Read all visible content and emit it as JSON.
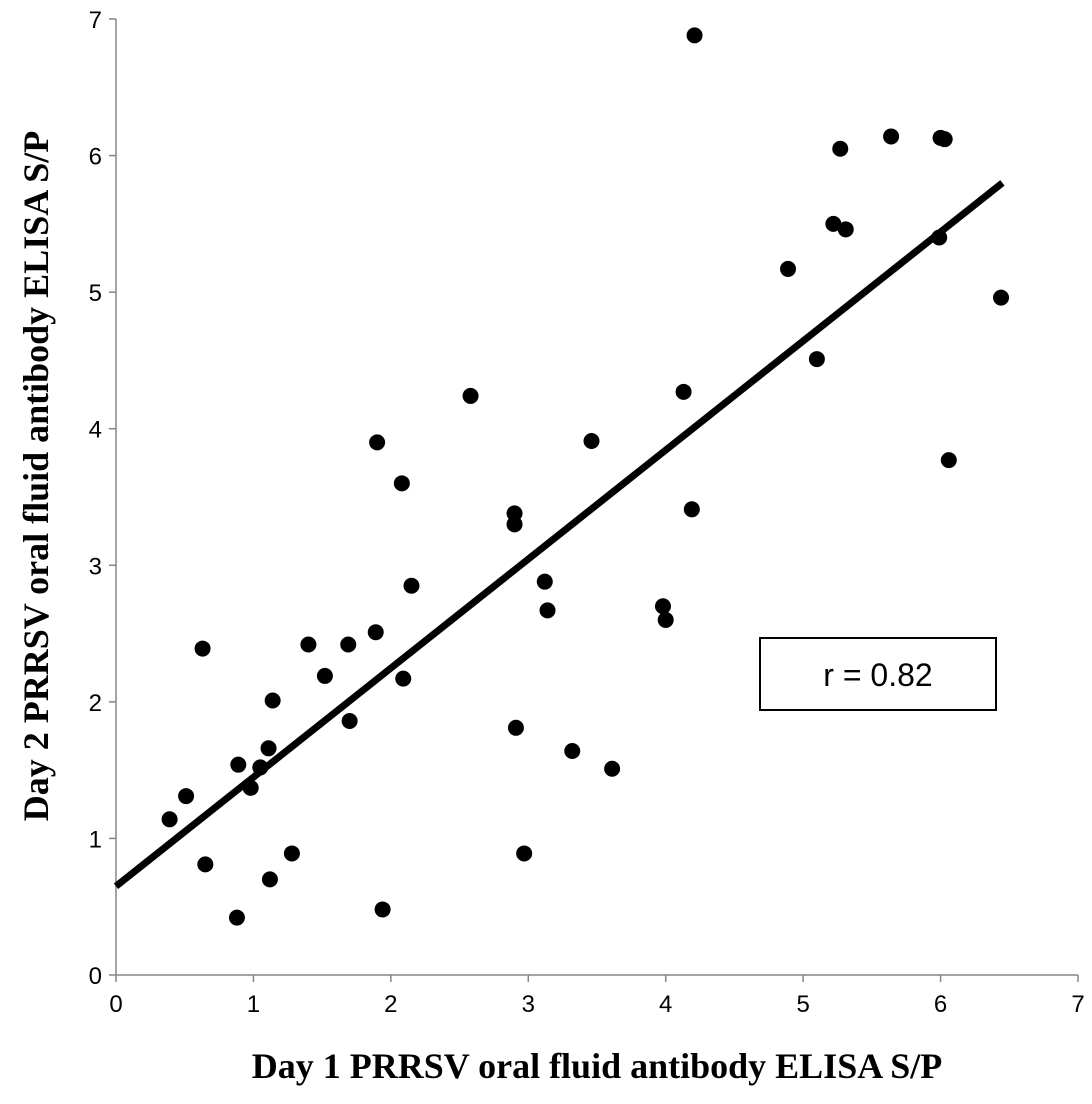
{
  "chart_data": {
    "type": "scatter",
    "title": "",
    "xlabel": "Day 1 PRRSV oral fluid antibody ELISA S/P",
    "ylabel": "Day 2 PRRSV oral fluid antibody ELISA S/P",
    "xlim": [
      0,
      7
    ],
    "ylim": [
      0,
      7
    ],
    "xticks": [
      "0",
      "1",
      "2",
      "3",
      "4",
      "5",
      "6",
      "7"
    ],
    "yticks": [
      "0",
      "1",
      "2",
      "3",
      "4",
      "5",
      "6",
      "7"
    ],
    "grid": false,
    "legend": "none",
    "annotation": "r = 0.82",
    "colors": {
      "points": "#000000",
      "trendline": "#000000"
    },
    "trendline": {
      "x": [
        0,
        6.45
      ],
      "y": [
        0.65,
        5.8
      ]
    },
    "series": [
      {
        "x": [
          0.39,
          0.51,
          0.63,
          0.65,
          0.88,
          0.89,
          0.98,
          1.05,
          1.11,
          1.12,
          1.14,
          1.28,
          1.4,
          1.52,
          1.69,
          1.7,
          1.89,
          1.9,
          1.94,
          2.08,
          2.09,
          2.15,
          2.58,
          2.9,
          2.9,
          2.91,
          2.97,
          3.12,
          3.14,
          3.32,
          3.46,
          3.61,
          3.98,
          4.0,
          4.13,
          4.19,
          4.21,
          4.89,
          5.1,
          5.22,
          5.27,
          5.31,
          5.64,
          5.99,
          6.0,
          6.03,
          6.06,
          6.44
        ],
        "y": [
          1.14,
          1.31,
          2.39,
          0.81,
          0.42,
          1.54,
          1.37,
          1.52,
          1.66,
          0.7,
          2.01,
          0.89,
          2.42,
          2.19,
          2.42,
          1.86,
          2.51,
          3.9,
          0.48,
          3.6,
          2.17,
          2.85,
          4.24,
          3.38,
          3.3,
          1.81,
          0.89,
          2.88,
          2.67,
          1.64,
          3.91,
          1.51,
          2.7,
          2.6,
          4.27,
          3.41,
          6.88,
          5.17,
          4.51,
          5.5,
          6.05,
          5.46,
          6.14,
          5.4,
          6.13,
          6.12,
          3.77,
          4.96
        ]
      }
    ]
  }
}
